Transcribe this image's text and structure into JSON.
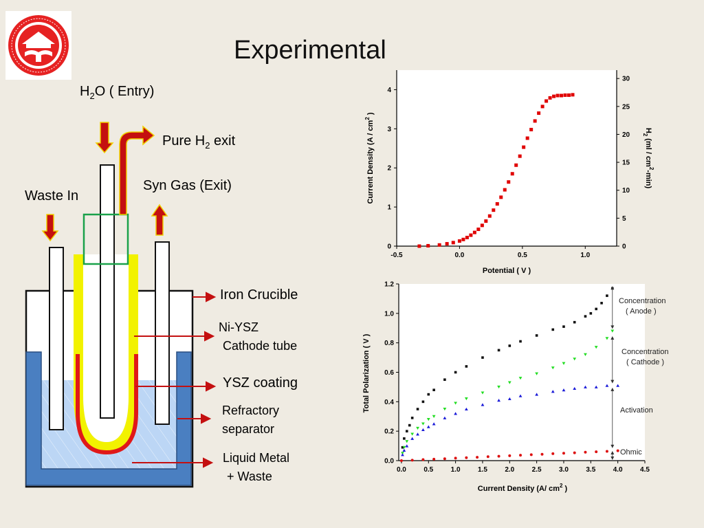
{
  "title": "Experimental",
  "logo": {
    "icon": "university-seal-icon",
    "text": "UNIVERSITAS BOSTONIENSIS · CONDITA MDCCCLXXXIX"
  },
  "diagram": {
    "h2o_entry": {
      "main": "H",
      "sub": "2",
      "rest": "O ( Entry)"
    },
    "pure_h2_exit": {
      "main": "Pure H",
      "sub": "2",
      "rest": " exit"
    },
    "syn_gas": "Syn Gas (Exit)",
    "waste_in": "Waste In",
    "iron_crucible": "Iron Crucible",
    "cathode_line1": "Ni-YSZ",
    "cathode_line2": "Cathode tube",
    "ysz_coating": "YSZ coating",
    "refractory_line1": "Refractory",
    "refractory_line2": "separator",
    "liquid_line1": "Liquid Metal",
    "liquid_line2": "+ Waste"
  },
  "colors": {
    "arrow_fill": "#c41010",
    "yellow_coating": "#f2f200",
    "red_tube": "#e01818",
    "liquid": "#bcd6f5",
    "separator": "#4a7fc1",
    "green_box": "#1aa14a"
  },
  "chart_data": [
    {
      "type": "scatter",
      "title": "",
      "xlabel": "Potential ( V )",
      "ylabel": {
        "main": "Current Density (A / cm",
        "sup": "2",
        "end": " )"
      },
      "ylabel_right": {
        "p1": "H",
        "sub": "2",
        "p2": " (ml / cm",
        "sup": "2",
        "p3": "-min)"
      },
      "xlim": [
        -0.5,
        1.25
      ],
      "ylim": [
        0,
        4.5
      ],
      "y2lim": [
        0,
        31.5
      ],
      "xticks": [
        -0.5,
        0.0,
        0.5,
        1.0
      ],
      "xtick_labels": [
        "-0.5",
        "0.0",
        "0.5",
        "1.0"
      ],
      "yticks": [
        0,
        1,
        2,
        3,
        4
      ],
      "ytick_labels": [
        "0",
        "1",
        "2",
        "3",
        "4"
      ],
      "y2ticks": [
        0,
        5,
        10,
        15,
        20,
        25,
        30
      ],
      "y2tick_labels": [
        "0",
        "5",
        "10",
        "15",
        "20",
        "25",
        "30"
      ],
      "series": [
        {
          "color": "#e00000",
          "x": [
            -0.32,
            -0.25,
            -0.16,
            -0.1,
            -0.05,
            0.0,
            0.03,
            0.06,
            0.09,
            0.12,
            0.15,
            0.18,
            0.21,
            0.24,
            0.27,
            0.3,
            0.33,
            0.36,
            0.39,
            0.42,
            0.45,
            0.48,
            0.51,
            0.54,
            0.57,
            0.6,
            0.63,
            0.66,
            0.69,
            0.72,
            0.75,
            0.78,
            0.81,
            0.84,
            0.87,
            0.9
          ],
          "y": [
            0.0,
            0.01,
            0.03,
            0.06,
            0.09,
            0.13,
            0.17,
            0.22,
            0.28,
            0.35,
            0.43,
            0.53,
            0.64,
            0.77,
            0.92,
            1.08,
            1.25,
            1.44,
            1.64,
            1.85,
            2.07,
            2.3,
            2.53,
            2.76,
            2.98,
            3.2,
            3.4,
            3.57,
            3.71,
            3.79,
            3.83,
            3.85,
            3.85,
            3.86,
            3.86,
            3.87
          ]
        }
      ]
    },
    {
      "type": "scatter",
      "title": "",
      "xlabel": {
        "main": "Current Density (A/ cm",
        "sup": "2",
        "end": " )"
      },
      "ylabel": "Total Polarization ( V )",
      "xlim": [
        -0.05,
        4.5
      ],
      "ylim": [
        0,
        1.2
      ],
      "xticks": [
        0.0,
        0.5,
        1.0,
        1.5,
        2.0,
        2.5,
        3.0,
        3.5,
        4.0,
        4.5
      ],
      "xtick_labels": [
        "0.0",
        "0.5",
        "1.0",
        "1.5",
        "2.0",
        "2.5",
        "3.0",
        "3.5",
        "4.0",
        "4.5"
      ],
      "yticks": [
        0.0,
        0.2,
        0.4,
        0.6,
        0.8,
        1.0,
        1.2
      ],
      "ytick_labels": [
        "0.0",
        "0.2",
        "0.4",
        "0.6",
        "0.8",
        "1.0",
        "1.2"
      ],
      "series": [
        {
          "color": "#111111",
          "marker": "square",
          "x": [
            0.02,
            0.05,
            0.1,
            0.15,
            0.2,
            0.3,
            0.4,
            0.5,
            0.6,
            0.8,
            1.0,
            1.2,
            1.5,
            1.8,
            2.0,
            2.2,
            2.5,
            2.8,
            3.0,
            3.2,
            3.4,
            3.5,
            3.6,
            3.7,
            3.8,
            3.9
          ],
          "y": [
            0.09,
            0.15,
            0.2,
            0.24,
            0.29,
            0.35,
            0.4,
            0.45,
            0.48,
            0.55,
            0.6,
            0.64,
            0.7,
            0.75,
            0.78,
            0.81,
            0.85,
            0.89,
            0.91,
            0.94,
            0.98,
            1.0,
            1.03,
            1.07,
            1.12,
            1.17
          ]
        },
        {
          "color": "#22dd22",
          "marker": "triangle-down",
          "x": [
            0.02,
            0.05,
            0.1,
            0.2,
            0.3,
            0.4,
            0.5,
            0.6,
            0.8,
            1.0,
            1.2,
            1.5,
            1.8,
            2.0,
            2.2,
            2.5,
            2.8,
            3.0,
            3.2,
            3.4,
            3.6,
            3.8,
            3.9
          ],
          "y": [
            0.05,
            0.09,
            0.13,
            0.18,
            0.22,
            0.25,
            0.28,
            0.3,
            0.35,
            0.39,
            0.42,
            0.46,
            0.5,
            0.53,
            0.56,
            0.59,
            0.63,
            0.66,
            0.69,
            0.72,
            0.77,
            0.83,
            0.88
          ]
        },
        {
          "color": "#1a1ad8",
          "marker": "triangle-up",
          "x": [
            0.02,
            0.05,
            0.1,
            0.2,
            0.3,
            0.4,
            0.5,
            0.6,
            0.8,
            1.0,
            1.2,
            1.5,
            1.8,
            2.0,
            2.2,
            2.5,
            2.8,
            3.0,
            3.2,
            3.4,
            3.6,
            3.8,
            4.0
          ],
          "y": [
            0.04,
            0.07,
            0.1,
            0.15,
            0.18,
            0.21,
            0.23,
            0.25,
            0.29,
            0.32,
            0.35,
            0.38,
            0.41,
            0.42,
            0.44,
            0.45,
            0.47,
            0.48,
            0.49,
            0.5,
            0.5,
            0.51,
            0.51
          ]
        },
        {
          "color": "#dd1111",
          "marker": "circle",
          "x": [
            0.0,
            0.2,
            0.4,
            0.6,
            0.8,
            1.0,
            1.2,
            1.4,
            1.6,
            1.8,
            2.0,
            2.2,
            2.4,
            2.6,
            2.8,
            3.0,
            3.2,
            3.4,
            3.6,
            3.8,
            4.0
          ],
          "y": [
            0.0,
            0.003,
            0.007,
            0.01,
            0.013,
            0.017,
            0.02,
            0.023,
            0.027,
            0.03,
            0.033,
            0.037,
            0.04,
            0.043,
            0.047,
            0.05,
            0.053,
            0.057,
            0.06,
            0.063,
            0.067
          ]
        }
      ],
      "annotations": [
        {
          "label": "Concentration",
          "label2": "( Anode )",
          "y_top": 1.19,
          "y_bottom": 0.89
        },
        {
          "label": "Concentration",
          "label2": "( Cathode )",
          "y_top": 0.85,
          "y_bottom": 0.52
        },
        {
          "label": "Activation",
          "label2": "",
          "y_top": 0.5,
          "y_bottom": 0.08
        },
        {
          "label": "Ohmic",
          "label2": "",
          "y_top": 0.07,
          "y_bottom": 0.0
        }
      ]
    }
  ]
}
